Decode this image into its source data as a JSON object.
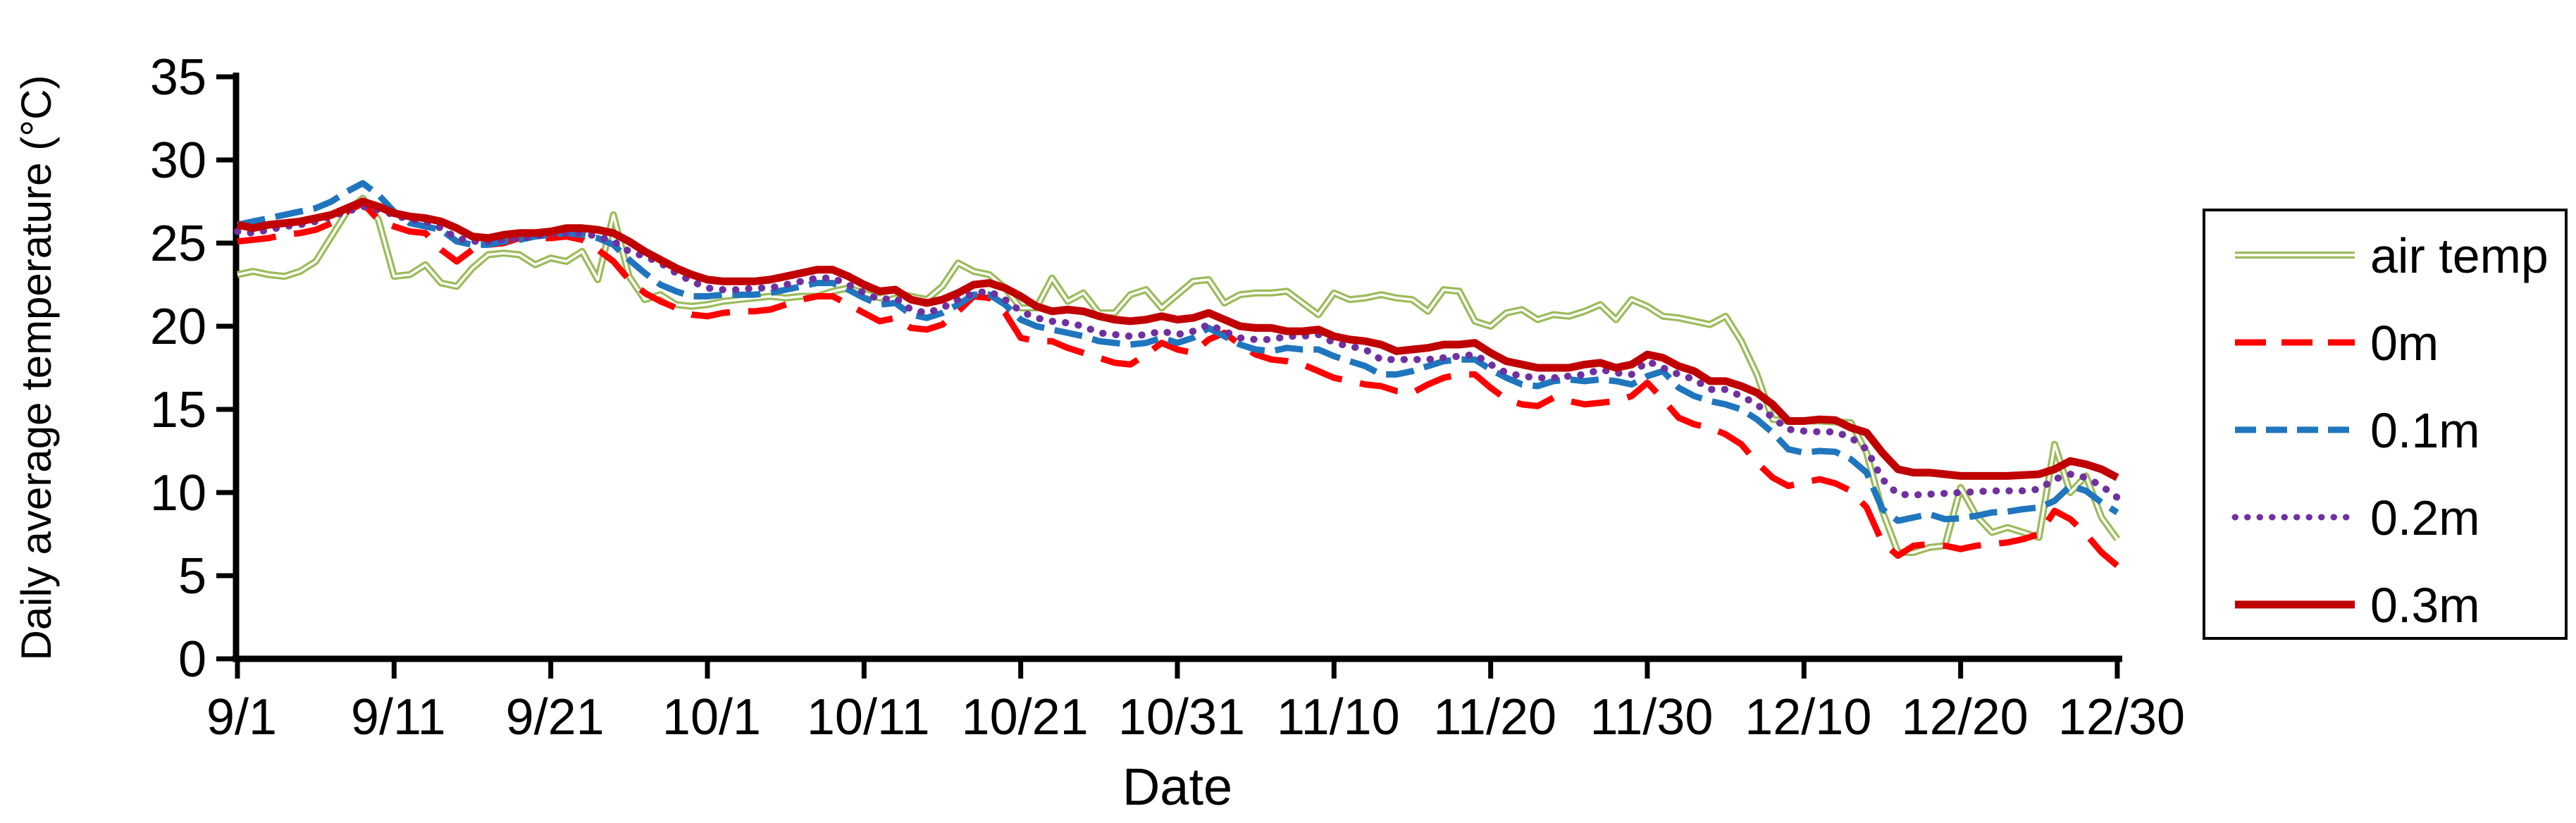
{
  "chart_data": {
    "type": "line",
    "title": "",
    "xlabel": "Date",
    "ylabel": "Daily average temperature (°C)",
    "ylim": [
      0,
      35
    ],
    "yticks": [
      0,
      5,
      10,
      15,
      20,
      25,
      30,
      35
    ],
    "x_tick_positions": [
      0,
      10,
      20,
      30,
      40,
      50,
      60,
      70,
      80,
      90,
      100,
      110,
      120
    ],
    "x_tick_labels": [
      "9/1",
      "9/11",
      "9/21",
      "10/1",
      "10/11",
      "10/21",
      "10/31",
      "11/10",
      "11/20",
      "11/30",
      "12/10",
      "12/20",
      "12/30"
    ],
    "n_points": 121,
    "grid": false,
    "legend_position": "right-box",
    "axis_color": "#000000",
    "background_color": "#ffffff",
    "series": [
      {
        "name": "air temp",
        "color": "#9BBB59",
        "style": "solid-double",
        "values": [
          23.1,
          23.3,
          23.1,
          23.0,
          23.3,
          23.9,
          25.4,
          26.9,
          27.7,
          26.4,
          23.0,
          23.1,
          23.7,
          22.6,
          22.4,
          23.5,
          24.3,
          24.4,
          24.3,
          23.7,
          24.1,
          23.9,
          24.5,
          22.8,
          26.7,
          23.0,
          21.6,
          21.9,
          21.3,
          21.2,
          21.3,
          21.5,
          21.6,
          21.7,
          21.8,
          21.7,
          21.8,
          21.8,
          22.1,
          22.3,
          22.0,
          21.7,
          22.0,
          21.8,
          21.6,
          22.4,
          23.8,
          23.3,
          23.1,
          22.3,
          21.1,
          21.1,
          22.9,
          21.5,
          22.0,
          20.8,
          20.8,
          21.9,
          22.2,
          21.1,
          21.9,
          22.7,
          22.8,
          21.4,
          21.9,
          22.0,
          22.0,
          22.1,
          21.4,
          20.7,
          22.0,
          21.6,
          21.7,
          21.9,
          21.7,
          21.6,
          20.9,
          22.2,
          22.1,
          20.3,
          20.0,
          20.8,
          21.0,
          20.4,
          20.7,
          20.6,
          20.9,
          21.3,
          20.4,
          21.6,
          21.2,
          20.6,
          20.5,
          20.3,
          20.1,
          20.6,
          19.1,
          17.1,
          14.4,
          14.3,
          14.3,
          14.3,
          14.25,
          14.2,
          12.4,
          8.9,
          6.4,
          6.4,
          6.7,
          6.8,
          10.3,
          8.6,
          7.6,
          7.9,
          7.6,
          7.3,
          12.9,
          10.0,
          11.0,
          8.5,
          7.2
        ]
      },
      {
        "name": "0m",
        "color": "#FF0000",
        "style": "dashed-long",
        "values": [
          25.1,
          25.2,
          25.3,
          25.5,
          25.6,
          25.8,
          26.2,
          26.9,
          27.4,
          26.4,
          26.0,
          25.7,
          25.6,
          24.6,
          23.9,
          24.6,
          24.9,
          25.0,
          25.3,
          25.3,
          25.3,
          25.4,
          25.2,
          24.6,
          23.9,
          22.8,
          22.0,
          21.5,
          21.1,
          20.7,
          20.6,
          20.8,
          20.9,
          20.9,
          21.0,
          21.3,
          21.6,
          21.8,
          21.8,
          21.3,
          20.8,
          20.3,
          20.5,
          19.9,
          19.8,
          20.1,
          20.9,
          21.8,
          21.7,
          20.8,
          19.3,
          19.1,
          19.1,
          18.7,
          18.4,
          18.1,
          17.8,
          17.7,
          18.3,
          19.0,
          18.6,
          18.4,
          19.2,
          19.6,
          18.9,
          18.3,
          18.0,
          17.9,
          17.7,
          17.3,
          16.9,
          16.7,
          16.5,
          16.4,
          16.1,
          16.0,
          16.5,
          16.9,
          17.1,
          17.1,
          16.3,
          15.6,
          15.3,
          15.2,
          15.7,
          15.5,
          15.3,
          15.4,
          15.5,
          15.8,
          16.6,
          15.6,
          14.5,
          14.1,
          13.9,
          13.5,
          12.9,
          11.8,
          10.9,
          10.4,
          10.6,
          10.8,
          10.55,
          10.1,
          9.1,
          7.0,
          6.2,
          6.8,
          6.9,
          6.8,
          6.6,
          6.8,
          6.9,
          7.0,
          7.2,
          7.5,
          8.9,
          8.4,
          7.5,
          6.4,
          5.6
        ]
      },
      {
        "name": "0.1m",
        "color": "#1F76BE",
        "style": "dashed",
        "values": [
          26.1,
          26.3,
          26.5,
          26.7,
          26.9,
          27.1,
          27.5,
          28.1,
          28.6,
          27.9,
          26.9,
          26.2,
          26.0,
          25.8,
          25.1,
          24.9,
          24.9,
          25.1,
          25.2,
          25.4,
          25.5,
          25.6,
          25.5,
          25.3,
          24.9,
          24.0,
          23.2,
          22.5,
          22.1,
          21.8,
          21.8,
          21.9,
          21.9,
          21.9,
          22.0,
          22.2,
          22.4,
          22.6,
          22.6,
          22.2,
          21.7,
          21.3,
          21.4,
          20.7,
          20.5,
          20.8,
          21.3,
          21.9,
          21.9,
          21.3,
          20.4,
          20.0,
          19.8,
          19.6,
          19.4,
          19.1,
          19.0,
          18.9,
          19.0,
          19.3,
          19.0,
          19.3,
          19.9,
          19.4,
          18.9,
          18.6,
          18.5,
          18.7,
          18.6,
          18.6,
          18.2,
          17.9,
          17.6,
          17.1,
          17.1,
          17.3,
          17.6,
          17.9,
          18.0,
          18.0,
          17.4,
          16.9,
          16.5,
          16.4,
          16.7,
          16.8,
          16.7,
          16.8,
          16.7,
          16.5,
          17.0,
          17.3,
          16.3,
          15.8,
          15.5,
          15.3,
          15.0,
          14.4,
          13.6,
          12.6,
          12.4,
          12.5,
          12.45,
          12.0,
          11.2,
          9.0,
          8.3,
          8.5,
          8.7,
          8.4,
          8.45,
          8.6,
          8.8,
          8.85,
          9.0,
          9.1,
          9.5,
          10.4,
          10.1,
          9.4,
          8.8
        ]
      },
      {
        "name": "0.2m",
        "color": "#7030A0",
        "style": "dotted",
        "values": [
          25.7,
          25.6,
          25.8,
          26.0,
          26.1,
          26.3,
          26.6,
          26.9,
          27.2,
          27.0,
          26.7,
          26.4,
          26.3,
          25.9,
          25.3,
          25.1,
          25.1,
          25.2,
          25.3,
          25.4,
          25.6,
          25.6,
          25.6,
          25.4,
          25.1,
          24.5,
          24.2,
          23.8,
          23.2,
          22.7,
          22.3,
          22.2,
          22.2,
          22.3,
          22.3,
          22.5,
          22.7,
          22.9,
          22.9,
          22.5,
          22.0,
          21.6,
          21.7,
          21.0,
          20.8,
          21.1,
          21.6,
          22.0,
          22.1,
          21.6,
          20.9,
          20.5,
          20.3,
          20.2,
          20.0,
          19.6,
          19.5,
          19.4,
          19.5,
          19.7,
          19.5,
          19.7,
          20.1,
          19.7,
          19.3,
          19.2,
          19.2,
          19.4,
          19.4,
          19.5,
          19.0,
          18.8,
          18.6,
          18.0,
          18.0,
          18.0,
          18.0,
          18.1,
          18.2,
          18.3,
          17.7,
          17.2,
          17.0,
          16.9,
          16.9,
          17.0,
          17.1,
          17.4,
          17.2,
          17.1,
          17.9,
          17.5,
          17.1,
          16.8,
          16.2,
          16.2,
          15.8,
          15.3,
          14.5,
          13.8,
          13.7,
          13.65,
          13.65,
          13.3,
          12.6,
          10.8,
          9.9,
          9.85,
          9.9,
          9.95,
          10.0,
          10.05,
          10.1,
          10.1,
          10.1,
          10.2,
          10.8,
          11.1,
          10.9,
          10.4,
          9.7
        ]
      },
      {
        "name": "0.3m",
        "color": "#C00000",
        "style": "solid",
        "values": [
          26.1,
          25.9,
          26.1,
          26.2,
          26.3,
          26.5,
          26.7,
          27.1,
          27.5,
          27.2,
          26.8,
          26.6,
          26.5,
          26.3,
          25.9,
          25.4,
          25.3,
          25.5,
          25.6,
          25.6,
          25.7,
          25.9,
          25.9,
          25.8,
          25.6,
          25.1,
          24.5,
          24.0,
          23.5,
          23.1,
          22.8,
          22.7,
          22.7,
          22.7,
          22.8,
          23.0,
          23.2,
          23.4,
          23.4,
          23.0,
          22.5,
          22.1,
          22.2,
          21.6,
          21.4,
          21.6,
          22.0,
          22.5,
          22.6,
          22.3,
          21.8,
          21.2,
          20.9,
          21.0,
          20.9,
          20.6,
          20.4,
          20.3,
          20.4,
          20.6,
          20.4,
          20.5,
          20.8,
          20.4,
          20.0,
          19.9,
          19.9,
          19.7,
          19.7,
          19.8,
          19.4,
          19.2,
          19.1,
          18.9,
          18.5,
          18.6,
          18.7,
          18.9,
          18.9,
          19.0,
          18.4,
          17.9,
          17.7,
          17.5,
          17.5,
          17.5,
          17.7,
          17.8,
          17.5,
          17.7,
          18.3,
          18.1,
          17.6,
          17.3,
          16.7,
          16.7,
          16.4,
          16.0,
          15.3,
          14.3,
          14.3,
          14.4,
          14.35,
          13.9,
          13.6,
          12.4,
          11.4,
          11.2,
          11.2,
          11.1,
          11.0,
          11.0,
          11.0,
          11.0,
          11.05,
          11.1,
          11.4,
          11.9,
          11.7,
          11.4,
          10.9
        ]
      }
    ],
    "legend_labels": [
      "air temp",
      "0m",
      "0.1m",
      "0.2m",
      "0.3m"
    ]
  }
}
